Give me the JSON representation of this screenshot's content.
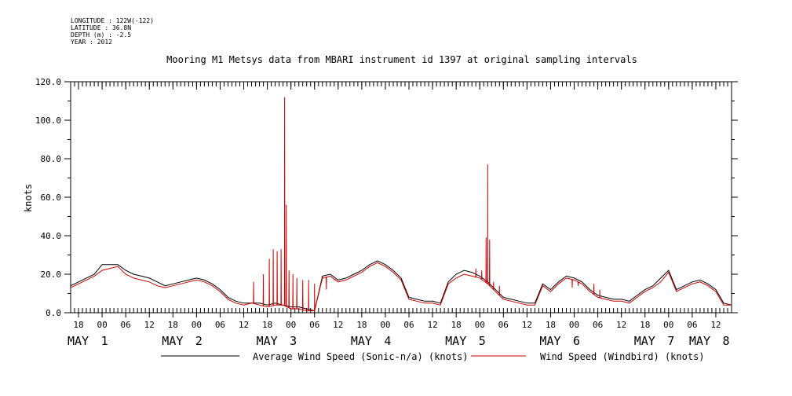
{
  "header": {
    "longitude": "LONGITUDE : 122W(-122)",
    "latitude": "LATITUDE : 36.8N",
    "depth": "DEPTH (m) : -2.5",
    "year": "YEAR : 2012"
  },
  "chart_data": {
    "type": "line",
    "title": "Mooring M1 Metsys data from MBARI instrument id 1397 at original sampling intervals",
    "xlabel": "",
    "ylabel": "knots",
    "xlim_hours": [
      -8,
      160
    ],
    "ylim": [
      0,
      120
    ],
    "yticks": [
      0,
      20,
      40,
      60,
      80,
      100,
      120
    ],
    "grid": false,
    "legend_position": "bottom",
    "colors": {
      "avg": "#000000",
      "windbird": "#cc0000"
    },
    "hour_ticks": [
      {
        "h": -6,
        "label": "18"
      },
      {
        "h": 0,
        "label": "00"
      },
      {
        "h": 6,
        "label": "06"
      },
      {
        "h": 12,
        "label": "12"
      },
      {
        "h": 18,
        "label": "18"
      },
      {
        "h": 24,
        "label": "00"
      },
      {
        "h": 30,
        "label": "06"
      },
      {
        "h": 36,
        "label": "12"
      },
      {
        "h": 42,
        "label": "18"
      },
      {
        "h": 48,
        "label": "00"
      },
      {
        "h": 54,
        "label": "06"
      },
      {
        "h": 60,
        "label": "12"
      },
      {
        "h": 66,
        "label": "18"
      },
      {
        "h": 72,
        "label": "00"
      },
      {
        "h": 78,
        "label": "06"
      },
      {
        "h": 84,
        "label": "12"
      },
      {
        "h": 90,
        "label": "18"
      },
      {
        "h": 96,
        "label": "00"
      },
      {
        "h": 102,
        "label": "06"
      },
      {
        "h": 108,
        "label": "12"
      },
      {
        "h": 114,
        "label": "18"
      },
      {
        "h": 120,
        "label": "00"
      },
      {
        "h": 126,
        "label": "06"
      },
      {
        "h": 132,
        "label": "12"
      },
      {
        "h": 138,
        "label": "18"
      },
      {
        "h": 144,
        "label": "00"
      },
      {
        "h": 150,
        "label": "06"
      },
      {
        "h": 156,
        "label": "12"
      }
    ],
    "day_labels": [
      {
        "h": 0,
        "month": "MAY",
        "day": "1"
      },
      {
        "h": 24,
        "month": "MAY",
        "day": "2"
      },
      {
        "h": 48,
        "month": "MAY",
        "day": "3"
      },
      {
        "h": 72,
        "month": "MAY",
        "day": "4"
      },
      {
        "h": 96,
        "month": "MAY",
        "day": "5"
      },
      {
        "h": 120,
        "month": "MAY",
        "day": "6"
      },
      {
        "h": 144,
        "month": "MAY",
        "day": "7"
      },
      {
        "h": 168,
        "month": "MAY",
        "day": "8"
      }
    ],
    "series": [
      {
        "name": "Average Wind Speed (Sonic-n/a) (knots)",
        "color": "#000000",
        "x_hours": [
          -8,
          -6,
          -4,
          -2,
          0,
          2,
          4,
          6,
          8,
          10,
          12,
          14,
          16,
          18,
          20,
          22,
          24,
          26,
          28,
          30,
          32,
          34,
          36,
          38,
          40,
          42,
          44,
          46,
          48,
          50,
          52,
          54,
          56,
          58,
          60,
          62,
          64,
          66,
          68,
          70,
          72,
          74,
          76,
          78,
          80,
          82,
          84,
          86,
          88,
          90,
          92,
          94,
          96,
          98,
          100,
          102,
          104,
          106,
          108,
          110,
          112,
          114,
          116,
          118,
          120,
          122,
          124,
          126,
          128,
          130,
          132,
          134,
          136,
          138,
          140,
          142,
          144,
          146,
          148,
          150,
          152,
          154,
          156,
          158,
          160
        ],
        "values": [
          14,
          16,
          18,
          20,
          25,
          25,
          25,
          22,
          20,
          19,
          18,
          16,
          14,
          15,
          16,
          17,
          18,
          17,
          15,
          12,
          8,
          6,
          5,
          5,
          5,
          4,
          5,
          4,
          3,
          3,
          2,
          1,
          19,
          20,
          17,
          18,
          20,
          22,
          25,
          27,
          25,
          22,
          18,
          8,
          7,
          6,
          6,
          5,
          16,
          20,
          22,
          21,
          19,
          16,
          12,
          8,
          7,
          6,
          5,
          5,
          15,
          12,
          16,
          19,
          18,
          16,
          12,
          9,
          8,
          7,
          7,
          6,
          9,
          12,
          14,
          18,
          22,
          12,
          14,
          16,
          17,
          15,
          12,
          5,
          4
        ]
      },
      {
        "name": "Wind Speed (Windbird) (knots)",
        "color": "#cc0000",
        "x_hours": [
          -8,
          -6,
          -4,
          -2,
          0,
          2,
          4,
          6,
          8,
          10,
          12,
          14,
          16,
          18,
          20,
          22,
          24,
          26,
          28,
          30,
          32,
          34,
          36,
          38,
          40,
          42,
          44,
          46,
          48,
          50,
          52,
          54,
          56,
          58,
          60,
          62,
          64,
          66,
          68,
          70,
          72,
          74,
          76,
          78,
          80,
          82,
          84,
          86,
          88,
          90,
          92,
          94,
          96,
          98,
          100,
          102,
          104,
          106,
          108,
          110,
          112,
          114,
          116,
          118,
          120,
          122,
          124,
          126,
          128,
          130,
          132,
          134,
          136,
          138,
          140,
          142,
          144,
          146,
          148,
          150,
          152,
          154,
          156,
          158,
          160
        ],
        "values": [
          13,
          15,
          17,
          19,
          22,
          23,
          24,
          20,
          18,
          17,
          16,
          14,
          13,
          14,
          15,
          16,
          17,
          16,
          14,
          11,
          7,
          5,
          4,
          5,
          4,
          3,
          4,
          4,
          2,
          2,
          1,
          1,
          18,
          19,
          16,
          17,
          19,
          21,
          24,
          26,
          24,
          21,
          17,
          7,
          6,
          5,
          5,
          4,
          15,
          18,
          20,
          19,
          18,
          15,
          11,
          7,
          6,
          5,
          4,
          4,
          14,
          11,
          15,
          18,
          17,
          15,
          11,
          8,
          7,
          6,
          6,
          5,
          8,
          11,
          13,
          16,
          21,
          11,
          13,
          15,
          16,
          14,
          11,
          4,
          4
        ],
        "spikes": [
          {
            "h": 38.5,
            "v": 16
          },
          {
            "h": 41.0,
            "v": 20
          },
          {
            "h": 42.5,
            "v": 28
          },
          {
            "h": 43.5,
            "v": 33
          },
          {
            "h": 44.5,
            "v": 32
          },
          {
            "h": 45.5,
            "v": 33
          },
          {
            "h": 46.4,
            "v": 112
          },
          {
            "h": 46.8,
            "v": 56
          },
          {
            "h": 47.5,
            "v": 22
          },
          {
            "h": 48.5,
            "v": 20
          },
          {
            "h": 49.5,
            "v": 18
          },
          {
            "h": 51.0,
            "v": 17
          },
          {
            "h": 52.5,
            "v": 17
          },
          {
            "h": 54.0,
            "v": 15
          },
          {
            "h": 55.5,
            "v": 14
          },
          {
            "h": 57.0,
            "v": 12
          },
          {
            "h": 59.0,
            "v": 17
          },
          {
            "h": 95.0,
            "v": 23
          },
          {
            "h": 96.5,
            "v": 22
          },
          {
            "h": 97.6,
            "v": 39
          },
          {
            "h": 98.0,
            "v": 77
          },
          {
            "h": 98.5,
            "v": 38
          },
          {
            "h": 99.5,
            "v": 16
          },
          {
            "h": 101.0,
            "v": 14
          },
          {
            "h": 119.5,
            "v": 13
          },
          {
            "h": 121.0,
            "v": 14
          },
          {
            "h": 123.0,
            "v": 13
          },
          {
            "h": 125.0,
            "v": 15
          },
          {
            "h": 126.5,
            "v": 12
          }
        ]
      }
    ]
  }
}
